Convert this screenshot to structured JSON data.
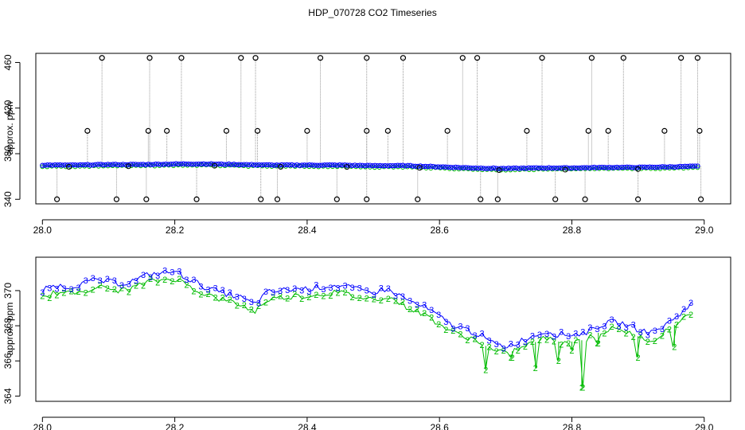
{
  "title": "HDP_070728  CO2 Timeseries",
  "colors": {
    "raw_line": "#999999",
    "raw_point": "#000000",
    "series3": "#0000ff",
    "series2": "#00bb00",
    "series2_top": "#00cccc"
  },
  "chart_data": [
    {
      "type": "scatter",
      "xlabel": "",
      "ylabel": "approx. ppm",
      "xlim": [
        27.99,
        29.04
      ],
      "ylim": [
        336,
        468
      ],
      "x_ticks": [
        28.0,
        28.2,
        28.4,
        28.6,
        28.8,
        29.0
      ],
      "x_tick_labels": [
        "28.0",
        "28.2",
        "28.4",
        "28.6",
        "28.8",
        "29.0"
      ],
      "y_ticks": [
        340,
        380,
        420,
        460
      ],
      "y_tick_labels": [
        "340",
        "380",
        "420",
        "460"
      ],
      "baseline": [
        [
          28.0,
          370
        ],
        [
          28.05,
          370
        ],
        [
          28.1,
          370.5
        ],
        [
          28.15,
          370.5
        ],
        [
          28.2,
          371
        ],
        [
          28.25,
          371
        ],
        [
          28.3,
          370.5
        ],
        [
          28.35,
          370
        ],
        [
          28.4,
          370
        ],
        [
          28.45,
          370
        ],
        [
          28.5,
          369.5
        ],
        [
          28.55,
          369.5
        ],
        [
          28.6,
          368.5
        ],
        [
          28.65,
          367.5
        ],
        [
          28.7,
          367
        ],
        [
          28.75,
          367.5
        ],
        [
          28.8,
          367.5
        ],
        [
          28.85,
          368
        ],
        [
          28.9,
          368
        ],
        [
          28.95,
          368.5
        ],
        [
          28.99,
          369
        ]
      ],
      "spikes_high": [
        28.09,
        28.162,
        28.21,
        28.3,
        28.322,
        28.42,
        28.49,
        28.545,
        28.635,
        28.657,
        28.755,
        28.83,
        28.878,
        28.965,
        28.99
      ],
      "spikes_400": [
        28.068,
        28.16,
        28.188,
        28.278,
        28.325,
        28.4,
        28.49,
        28.522,
        28.612,
        28.732,
        28.825,
        28.855,
        28.94,
        28.993
      ],
      "spikes_low": [
        28.022,
        28.112,
        28.157,
        28.233,
        28.33,
        28.355,
        28.445,
        28.49,
        28.567,
        28.662,
        28.688,
        28.775,
        28.82,
        28.9,
        28.995
      ],
      "spikes_high_value": 464,
      "spikes_400_value": 400,
      "spikes_low_value": 340
    },
    {
      "type": "scatter",
      "xlabel": "",
      "ylabel": "approx. ppm",
      "xlim": [
        27.99,
        29.04
      ],
      "ylim": [
        363.7,
        371.9
      ],
      "x_ticks": [
        28.0,
        28.2,
        28.4,
        28.6,
        28.8,
        29.0
      ],
      "x_tick_labels": [
        "28.0",
        "28.2",
        "28.4",
        "28.6",
        "28.8",
        "29.0"
      ],
      "y_ticks": [
        364,
        366,
        368,
        370
      ],
      "y_tick_labels": [
        "364",
        "366",
        "368",
        "370"
      ],
      "series": [
        {
          "marker": "3",
          "points": [
            [
              28.0,
              370.0
            ],
            [
              28.02,
              370.3
            ],
            [
              28.04,
              370.2
            ],
            [
              28.06,
              370.4
            ],
            [
              28.08,
              370.6
            ],
            [
              28.1,
              370.5
            ],
            [
              28.12,
              370.4
            ],
            [
              28.14,
              370.6
            ],
            [
              28.16,
              370.9
            ],
            [
              28.18,
              371.0
            ],
            [
              28.2,
              371.1
            ],
            [
              28.22,
              370.7
            ],
            [
              28.24,
              370.3
            ],
            [
              28.26,
              370.0
            ],
            [
              28.28,
              369.8
            ],
            [
              28.3,
              369.6
            ],
            [
              28.32,
              369.2
            ],
            [
              28.34,
              369.9
            ],
            [
              28.36,
              370.0
            ],
            [
              28.38,
              370.1
            ],
            [
              28.4,
              370.1
            ],
            [
              28.42,
              370.2
            ],
            [
              28.44,
              370.3
            ],
            [
              28.46,
              370.2
            ],
            [
              28.48,
              370.0
            ],
            [
              28.5,
              369.9
            ],
            [
              28.52,
              370.1
            ],
            [
              28.54,
              369.7
            ],
            [
              28.56,
              369.3
            ],
            [
              28.58,
              369.0
            ],
            [
              28.6,
              368.5
            ],
            [
              28.62,
              368.0
            ],
            [
              28.64,
              367.8
            ],
            [
              28.66,
              367.5
            ],
            [
              28.68,
              367.0
            ],
            [
              28.7,
              366.8
            ],
            [
              28.72,
              367.1
            ],
            [
              28.74,
              367.4
            ],
            [
              28.76,
              367.7
            ],
            [
              28.78,
              367.5
            ],
            [
              28.8,
              367.5
            ],
            [
              28.82,
              367.6
            ],
            [
              28.84,
              368.0
            ],
            [
              28.86,
              368.2
            ],
            [
              28.88,
              368.1
            ],
            [
              28.9,
              367.8
            ],
            [
              28.92,
              367.6
            ],
            [
              28.94,
              368.0
            ],
            [
              28.96,
              368.6
            ],
            [
              28.98,
              369.2
            ]
          ]
        },
        {
          "marker": "2",
          "points": [
            [
              28.0,
              369.6
            ],
            [
              28.02,
              369.9
            ],
            [
              28.04,
              369.8
            ],
            [
              28.06,
              370.0
            ],
            [
              28.08,
              370.2
            ],
            [
              28.1,
              370.1
            ],
            [
              28.12,
              370.0
            ],
            [
              28.14,
              370.2
            ],
            [
              28.16,
              370.5
            ],
            [
              28.18,
              370.6
            ],
            [
              28.2,
              370.7
            ],
            [
              28.22,
              370.3
            ],
            [
              28.24,
              369.9
            ],
            [
              28.26,
              369.6
            ],
            [
              28.28,
              369.4
            ],
            [
              28.3,
              369.2
            ],
            [
              28.32,
              368.8
            ],
            [
              28.34,
              369.5
            ],
            [
              28.36,
              369.6
            ],
            [
              28.38,
              369.7
            ],
            [
              28.4,
              369.7
            ],
            [
              28.42,
              369.8
            ],
            [
              28.44,
              369.9
            ],
            [
              28.46,
              369.8
            ],
            [
              28.48,
              369.6
            ],
            [
              28.5,
              369.5
            ],
            [
              28.52,
              369.7
            ],
            [
              28.54,
              369.3
            ],
            [
              28.56,
              368.9
            ],
            [
              28.58,
              368.6
            ],
            [
              28.6,
              368.1
            ],
            [
              28.62,
              367.6
            ],
            [
              28.64,
              367.4
            ],
            [
              28.66,
              367.1
            ],
            [
              28.68,
              366.6
            ],
            [
              28.7,
              366.4
            ],
            [
              28.72,
              366.7
            ],
            [
              28.74,
              367.0
            ],
            [
              28.76,
              367.3
            ],
            [
              28.78,
              367.1
            ],
            [
              28.8,
              367.1
            ],
            [
              28.82,
              367.2
            ],
            [
              28.84,
              367.6
            ],
            [
              28.86,
              367.8
            ],
            [
              28.88,
              367.7
            ],
            [
              28.9,
              367.4
            ],
            [
              28.92,
              367.2
            ],
            [
              28.94,
              367.6
            ],
            [
              28.96,
              368.2
            ],
            [
              28.98,
              368.8
            ]
          ],
          "dips": [
            [
              28.67,
              365.5
            ],
            [
              28.71,
              366.2
            ],
            [
              28.745,
              365.6
            ],
            [
              28.78,
              366.0
            ],
            [
              28.8,
              366.6
            ],
            [
              28.815,
              364.5
            ],
            [
              28.84,
              367.0
            ],
            [
              28.9,
              366.2
            ],
            [
              28.955,
              366.8
            ]
          ]
        }
      ]
    }
  ]
}
